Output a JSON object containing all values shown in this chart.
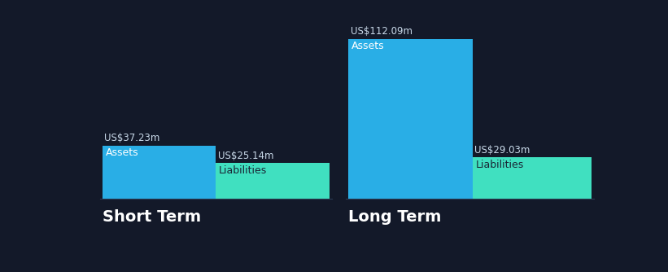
{
  "background_color": "#131929",
  "groups": [
    "Short Term",
    "Long Term"
  ],
  "assets": [
    37.23,
    112.09
  ],
  "liabilities": [
    25.14,
    29.03
  ],
  "asset_color": "#29aee6",
  "liability_color": "#40e0c0",
  "asset_label_color": "#ffffff",
  "liability_label_color": "#1a2535",
  "value_color": "#c8d8e8",
  "group_label_color": "#ffffff",
  "bottom_line_color": "#2a3a52",
  "group_label_fontsize": 14,
  "value_fontsize": 8.5,
  "bar_label_fontsize": 9
}
